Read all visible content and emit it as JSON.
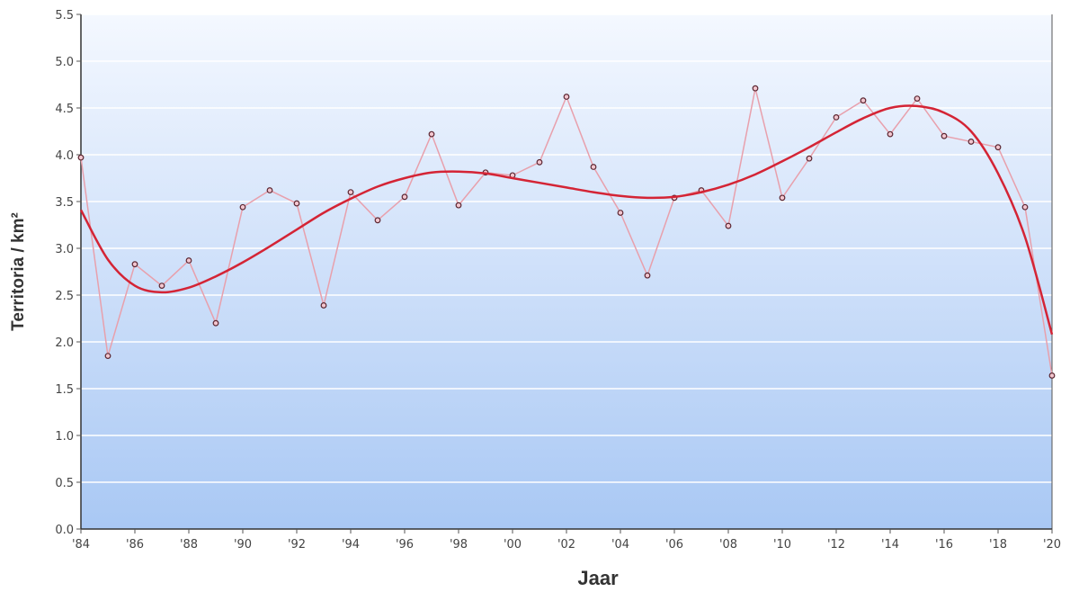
{
  "chart_data": {
    "type": "line",
    "xlabel": "Jaar",
    "ylabel": "Territoria / km²",
    "ylim": [
      0,
      5.5
    ],
    "xlim": [
      1984,
      2020
    ],
    "grid": true,
    "y_ticks": [
      "0.0",
      "0.5",
      "1.0",
      "1.5",
      "2.0",
      "2.5",
      "3.0",
      "3.5",
      "4.0",
      "4.5",
      "5.0",
      "5.5"
    ],
    "x_ticks": [
      {
        "year": 1984,
        "label": "'84"
      },
      {
        "year": 1986,
        "label": "'86"
      },
      {
        "year": 1988,
        "label": "'88"
      },
      {
        "year": 1990,
        "label": "'90"
      },
      {
        "year": 1992,
        "label": "'92"
      },
      {
        "year": 1994,
        "label": "'94"
      },
      {
        "year": 1996,
        "label": "'96"
      },
      {
        "year": 1998,
        "label": "'98"
      },
      {
        "year": 2000,
        "label": "'00"
      },
      {
        "year": 2002,
        "label": "'02"
      },
      {
        "year": 2004,
        "label": "'04"
      },
      {
        "year": 2006,
        "label": "'06"
      },
      {
        "year": 2008,
        "label": "'08"
      },
      {
        "year": 2010,
        "label": "'10"
      },
      {
        "year": 2012,
        "label": "'12"
      },
      {
        "year": 2014,
        "label": "'14"
      },
      {
        "year": 2016,
        "label": "'16"
      },
      {
        "year": 2018,
        "label": "'18"
      },
      {
        "year": 2020,
        "label": "'20"
      }
    ],
    "series": [
      {
        "style": "observed",
        "color": "#e8a0ac",
        "x": [
          1984,
          1985,
          1986,
          1987,
          1988,
          1989,
          1990,
          1991,
          1992,
          1993,
          1994,
          1995,
          1996,
          1997,
          1998,
          1999,
          2000,
          2001,
          2002,
          2003,
          2004,
          2005,
          2006,
          2007,
          2008,
          2009,
          2010,
          2011,
          2012,
          2013,
          2014,
          2015,
          2016,
          2017,
          2018,
          2019,
          2020
        ],
        "values": [
          3.97,
          1.85,
          2.83,
          2.6,
          2.87,
          2.2,
          3.44,
          3.62,
          3.48,
          2.39,
          3.6,
          3.3,
          3.55,
          4.22,
          3.46,
          3.81,
          3.78,
          3.92,
          4.62,
          3.87,
          3.38,
          2.71,
          3.54,
          3.62,
          3.24,
          4.71,
          3.54,
          3.96,
          4.4,
          4.58,
          4.22,
          4.6,
          4.2,
          4.14,
          4.08,
          3.44,
          1.64
        ]
      },
      {
        "style": "trend",
        "color": "#d42435",
        "x": [
          1984,
          1985,
          1986,
          1987,
          1988,
          1989,
          1990,
          1991,
          1992,
          1993,
          1994,
          1995,
          1996,
          1997,
          1998,
          1999,
          2000,
          2001,
          2002,
          2003,
          2004,
          2005,
          2006,
          2007,
          2008,
          2009,
          2010,
          2011,
          2012,
          2013,
          2014,
          2015,
          2016,
          2017,
          2018,
          2019,
          2020
        ],
        "values": [
          3.41,
          2.88,
          2.6,
          2.53,
          2.58,
          2.7,
          2.85,
          3.02,
          3.2,
          3.38,
          3.53,
          3.66,
          3.75,
          3.81,
          3.82,
          3.8,
          3.75,
          3.7,
          3.65,
          3.6,
          3.56,
          3.54,
          3.55,
          3.6,
          3.68,
          3.79,
          3.93,
          4.08,
          4.24,
          4.39,
          4.5,
          4.52,
          4.45,
          4.25,
          3.8,
          3.12,
          2.08
        ]
      }
    ],
    "background_gradient": [
      "#f4f8ff",
      "#a9c8f4"
    ],
    "gridline_color": "#ffffff"
  }
}
